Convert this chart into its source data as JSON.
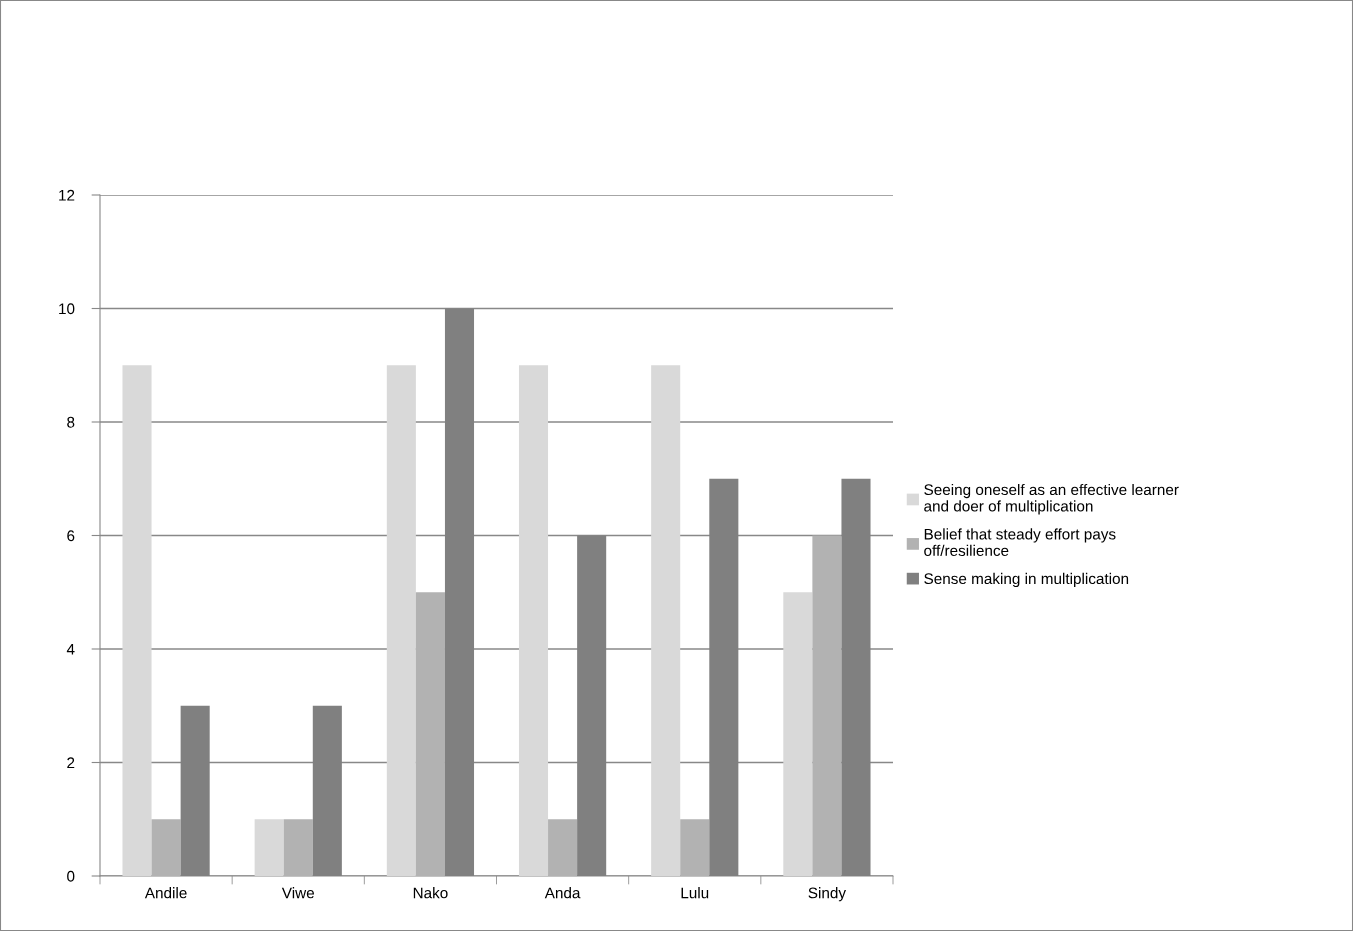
{
  "chart_data": {
    "type": "bar",
    "categories": [
      "Andile",
      "Viwe",
      "Nako",
      "Anda",
      "Lulu",
      "Sindy"
    ],
    "series": [
      {
        "name": "Seeing oneself as an effective learner and doer of multiplication",
        "color": "#d9d9d9",
        "values": [
          9,
          1,
          9,
          9,
          9,
          5
        ]
      },
      {
        "name": "Belief that steady effort pays off/resilience",
        "color": "#b2b2b2",
        "values": [
          1,
          1,
          5,
          1,
          1,
          6
        ]
      },
      {
        "name": "Sense making in multiplication",
        "color": "#808080",
        "values": [
          3,
          3,
          10,
          6,
          7,
          7
        ]
      }
    ],
    "ylim": [
      0,
      12
    ],
    "yticks": [
      0,
      2,
      4,
      6,
      8,
      10,
      12
    ],
    "grid": "y",
    "legend": "right"
  }
}
